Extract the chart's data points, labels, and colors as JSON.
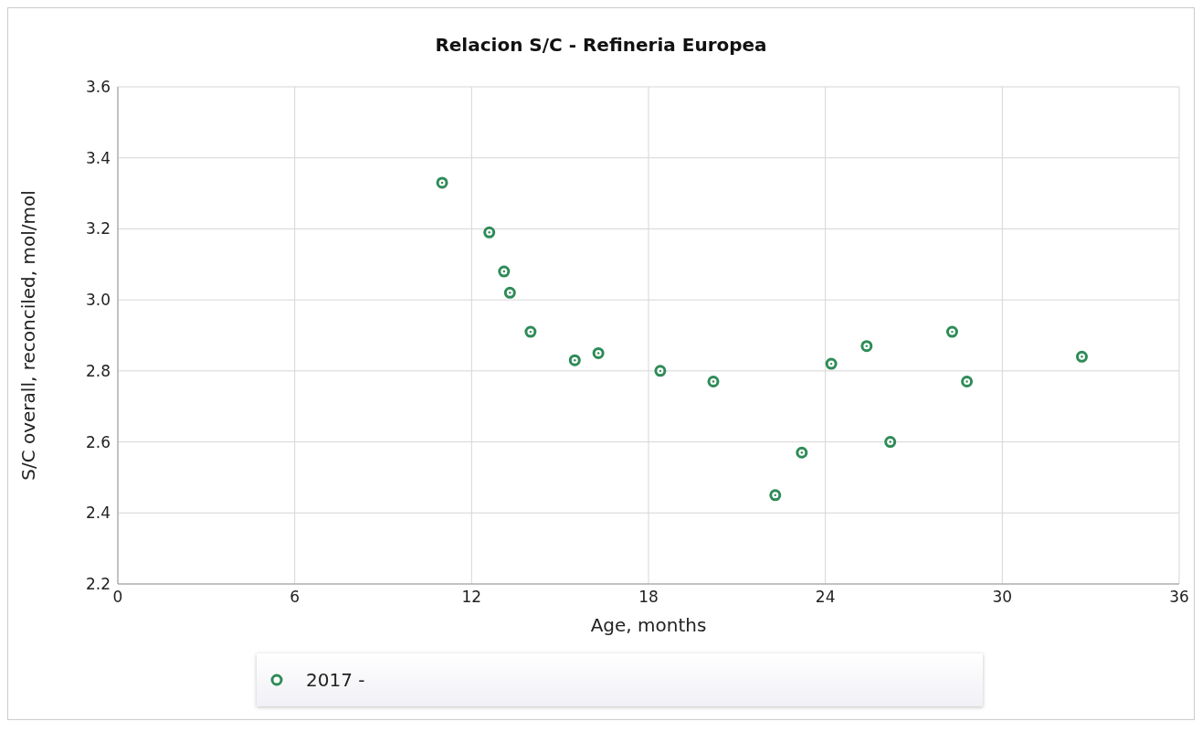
{
  "chart_data": {
    "type": "scatter",
    "title": "Relacion S/C - Refineria Europea",
    "xlabel": "Age, months",
    "ylabel": "S/C overall, reconciled, mol/mol",
    "x": [
      11.0,
      12.6,
      13.1,
      13.3,
      14.0,
      15.5,
      16.3,
      18.4,
      20.2,
      22.3,
      23.2,
      24.2,
      25.4,
      26.2,
      28.3,
      28.8,
      32.7
    ],
    "series": [
      {
        "name": "2017 -",
        "color": "#2e8b57",
        "values": [
          3.33,
          3.19,
          3.08,
          3.02,
          2.91,
          2.83,
          2.85,
          2.8,
          2.77,
          2.45,
          2.57,
          2.82,
          2.87,
          2.6,
          2.91,
          2.77,
          2.84
        ]
      }
    ],
    "xlim": [
      0,
      36
    ],
    "xticks": [
      0,
      6,
      12,
      18,
      24,
      30,
      36
    ],
    "ylim": [
      2.2,
      3.6
    ],
    "yticks": [
      {
        "value": 2.2,
        "label": "2.2"
      },
      {
        "value": 2.4,
        "label": "2.4"
      },
      {
        "value": 2.6,
        "label": "2.6"
      },
      {
        "value": 2.8,
        "label": "2.8"
      },
      {
        "value": 3,
        "label": "3.0"
      },
      {
        "value": 3.2,
        "label": "3.2"
      },
      {
        "value": 3.4,
        "label": "3.4"
      },
      {
        "value": 3.6,
        "label": "3.6"
      }
    ],
    "grid": true,
    "legend": "bottom",
    "marker": "circle"
  }
}
